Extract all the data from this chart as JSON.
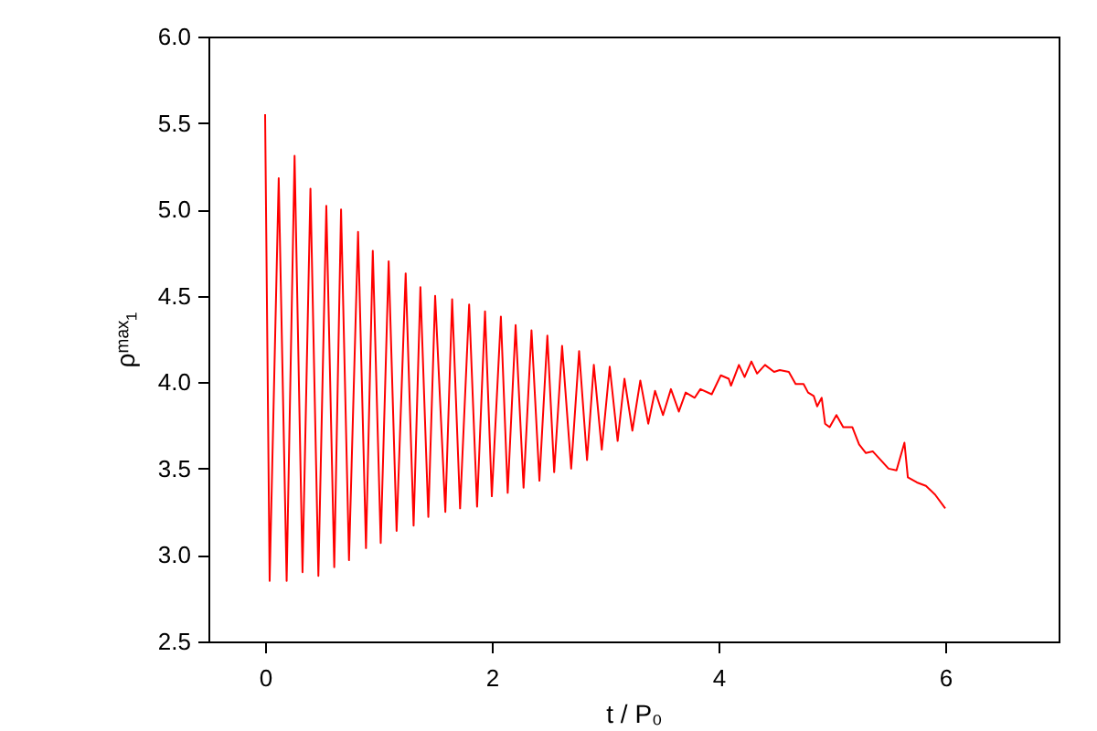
{
  "chart_data": {
    "type": "line",
    "xlabel": "t / P₀",
    "ylabel": "ρᵐᵃˣ₁",
    "xlim": [
      -0.5,
      7
    ],
    "xticks": [
      0,
      2,
      4,
      6
    ],
    "ylim": [
      2.5,
      6.0
    ],
    "yticks": [
      {
        "value": 2.5,
        "label": "2.5"
      },
      {
        "value": 3,
        "label": "3.0"
      },
      {
        "value": 3.5,
        "label": "3.5"
      },
      {
        "value": 4,
        "label": "4.0"
      },
      {
        "value": 4.5,
        "label": "4.5"
      },
      {
        "value": 5,
        "label": "5.0"
      },
      {
        "value": 5.5,
        "label": "5.5"
      },
      {
        "value": 6,
        "label": "6.0"
      }
    ],
    "grid": false,
    "series": [
      {
        "color": "#ff0000",
        "x": [
          0,
          0.04,
          0.12,
          0.19,
          0.26,
          0.33,
          0.4,
          0.47,
          0.54,
          0.61,
          0.67,
          0.74,
          0.82,
          0.89,
          0.95,
          1.02,
          1.09,
          1.16,
          1.24,
          1.31,
          1.37,
          1.44,
          1.5,
          1.59,
          1.65,
          1.72,
          1.8,
          1.87,
          1.94,
          2.0,
          2.08,
          2.14,
          2.21,
          2.28,
          2.35,
          2.42,
          2.49,
          2.55,
          2.62,
          2.7,
          2.77,
          2.84,
          2.9,
          2.97,
          3.04,
          3.11,
          3.17,
          3.24,
          3.31,
          3.38,
          3.44,
          3.51,
          3.58,
          3.65,
          3.71,
          3.79,
          3.84,
          3.94,
          4.02,
          4.09,
          4.11,
          4.18,
          4.23,
          4.29,
          4.34,
          4.41,
          4.49,
          4.54,
          4.62,
          4.68,
          4.75,
          4.79,
          4.84,
          4.87,
          4.91,
          4.94,
          4.98,
          5.04,
          5.1,
          5.18,
          5.24,
          5.3,
          5.36,
          5.43,
          5.5,
          5.57,
          5.64,
          5.67,
          5.75,
          5.83,
          5.91,
          6.0
        ],
        "values": [
          5.55,
          2.85,
          5.18,
          2.85,
          5.31,
          2.9,
          5.12,
          2.88,
          5.02,
          2.93,
          5.0,
          2.97,
          4.87,
          3.04,
          4.76,
          3.07,
          4.7,
          3.14,
          4.63,
          3.17,
          4.55,
          3.22,
          4.5,
          3.25,
          4.48,
          3.27,
          4.45,
          3.28,
          4.41,
          3.34,
          4.38,
          3.36,
          4.33,
          3.39,
          4.3,
          3.43,
          4.27,
          3.48,
          4.21,
          3.5,
          4.18,
          3.55,
          4.1,
          3.61,
          4.09,
          3.66,
          4.02,
          3.72,
          4.01,
          3.76,
          3.95,
          3.81,
          3.96,
          3.83,
          3.94,
          3.91,
          3.96,
          3.93,
          4.04,
          4.02,
          3.98,
          4.1,
          4.03,
          4.12,
          4.05,
          4.1,
          4.06,
          4.07,
          4.06,
          3.99,
          3.99,
          3.94,
          3.92,
          3.86,
          3.91,
          3.76,
          3.74,
          3.81,
          3.74,
          3.74,
          3.64,
          3.59,
          3.6,
          3.55,
          3.5,
          3.49,
          3.65,
          3.45,
          3.42,
          3.4,
          3.35,
          3.27
        ]
      }
    ]
  }
}
